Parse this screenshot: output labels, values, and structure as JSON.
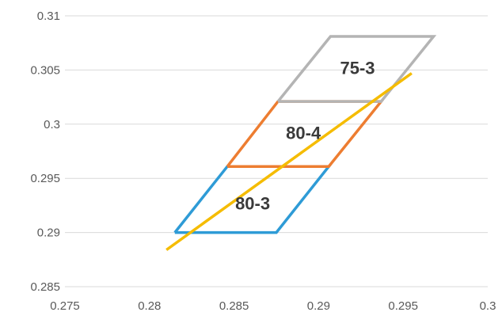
{
  "chart_data": {
    "type": "scatter",
    "title": "",
    "xlabel": "",
    "ylabel": "",
    "xlim": [
      0.275,
      0.3
    ],
    "ylim": [
      0.285,
      0.31
    ],
    "x_ticks": [
      "0.275",
      "0.28",
      "0.285",
      "0.29",
      "0.295",
      "0.3"
    ],
    "y_ticks": [
      "0.285",
      "0.29",
      "0.295",
      "0.3",
      "0.305",
      "0.31"
    ],
    "grid": "horizontal",
    "legend": "none",
    "series": [
      {
        "color": "#2e9bd6",
        "x": [
          0.2815,
          0.2875,
          0.2906,
          0.2846,
          0.2815
        ],
        "y": [
          0.29,
          0.29,
          0.2961,
          0.2961,
          0.29
        ]
      },
      {
        "color": "#ed7d31",
        "x": [
          0.2846,
          0.2906,
          0.2937,
          0.2876,
          0.2846
        ],
        "y": [
          0.2961,
          0.2961,
          0.3021,
          0.3021,
          0.2961
        ]
      },
      {
        "color": "#b4b4b4",
        "x": [
          0.2876,
          0.2937,
          0.2968,
          0.2907,
          0.2876
        ],
        "y": [
          0.3021,
          0.3021,
          0.3081,
          0.3081,
          0.3021
        ]
      },
      {
        "color": "#f5bc00",
        "x": [
          0.281,
          0.2955
        ],
        "y": [
          0.2884,
          0.3047
        ]
      }
    ],
    "annotations": [
      {
        "text": "75-3",
        "x": 0.2923,
        "y": 0.3052
      },
      {
        "text": "80-4",
        "x": 0.2891,
        "y": 0.2992
      },
      {
        "text": "80-3",
        "x": 0.2861,
        "y": 0.2927
      }
    ]
  }
}
